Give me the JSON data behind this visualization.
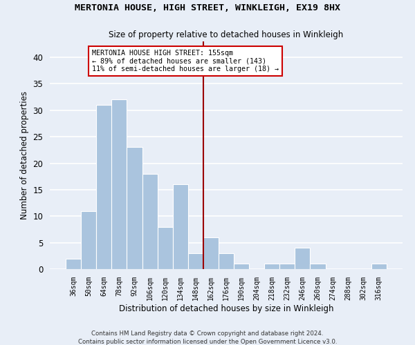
{
  "title": "MERTONIA HOUSE, HIGH STREET, WINKLEIGH, EX19 8HX",
  "subtitle": "Size of property relative to detached houses in Winkleigh",
  "xlabel": "Distribution of detached houses by size in Winkleigh",
  "ylabel": "Number of detached properties",
  "bins": [
    "36sqm",
    "50sqm",
    "64sqm",
    "78sqm",
    "92sqm",
    "106sqm",
    "120sqm",
    "134sqm",
    "148sqm",
    "162sqm",
    "176sqm",
    "190sqm",
    "204sqm",
    "218sqm",
    "232sqm",
    "246sqm",
    "260sqm",
    "274sqm",
    "288sqm",
    "302sqm",
    "316sqm"
  ],
  "values": [
    2,
    11,
    31,
    32,
    23,
    18,
    8,
    16,
    3,
    6,
    3,
    1,
    0,
    1,
    1,
    4,
    1,
    0,
    0,
    0,
    1
  ],
  "bar_color": "#aac4de",
  "bar_edge_color": "#ffffff",
  "background_color": "#e8eef7",
  "grid_color": "#ffffff",
  "vline_x": 8.5,
  "vline_color": "#9b0000",
  "annotation_text": "MERTONIA HOUSE HIGH STREET: 155sqm\n← 89% of detached houses are smaller (143)\n11% of semi-detached houses are larger (18) →",
  "annotation_box_color": "#ffffff",
  "annotation_box_edge_color": "#cc0000",
  "footer1": "Contains HM Land Registry data © Crown copyright and database right 2024.",
  "footer2": "Contains public sector information licensed under the Open Government Licence v3.0.",
  "ylim": [
    0,
    43
  ],
  "yticks": [
    0,
    5,
    10,
    15,
    20,
    25,
    30,
    35,
    40
  ]
}
